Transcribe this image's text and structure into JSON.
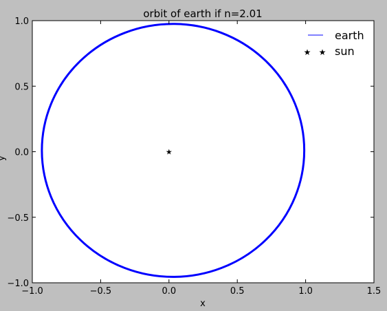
{
  "chart_data": {
    "type": "line",
    "title": "orbit of earth if n=2.01",
    "xlabel": "x",
    "ylabel": "y",
    "xlim": [
      -1.0,
      1.5
    ],
    "ylim": [
      -1.0,
      1.0
    ],
    "xticks": [
      "−1.0",
      "−0.5",
      "0.0",
      "0.5",
      "1.0",
      "1.5"
    ],
    "yticks": [
      "−1.0",
      "−0.5",
      "0.0",
      "0.5",
      "1.0"
    ],
    "grid": false,
    "legend_position": "top-right",
    "series": [
      {
        "name": "earth",
        "type": "line",
        "color": "#0000ff",
        "orbit": {
          "center": [
            0.03,
            0.01
          ],
          "semi_axis_x": 0.96,
          "semi_axis_y": 0.965
        }
      },
      {
        "name": "sun",
        "type": "scatter",
        "marker": "star",
        "color": "#000000",
        "points": [
          [
            0.0,
            0.0
          ]
        ]
      }
    ]
  }
}
